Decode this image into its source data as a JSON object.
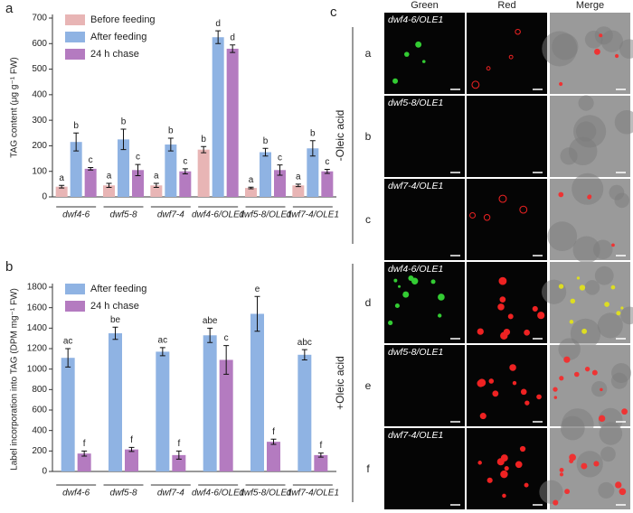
{
  "chart_data": [
    {
      "type": "bar",
      "panel": "a",
      "ylabel": "TAG content (μg g⁻¹ FW)",
      "categories": [
        "dwf4-6",
        "dwf5-8",
        "dwf7-4",
        "dwf4-6/OLE1",
        "dwf5-8/OLE1",
        "dwf7-4/OLE1"
      ],
      "series": [
        {
          "name": "Before feeding",
          "color": "#e8b5b5",
          "values": [
            40,
            45,
            45,
            185,
            35,
            45
          ],
          "errors": [
            5,
            8,
            8,
            12,
            3,
            5
          ],
          "letters": [
            "a",
            "a",
            "a",
            "b",
            "a",
            "a"
          ]
        },
        {
          "name": "After feeding",
          "color": "#8fb3e3",
          "values": [
            215,
            225,
            205,
            625,
            175,
            190
          ],
          "errors": [
            35,
            40,
            25,
            25,
            15,
            30
          ],
          "letters": [
            "b",
            "b",
            "b",
            "d",
            "b",
            "b"
          ]
        },
        {
          "name": "24 h chase",
          "color": "#b47bc0",
          "values": [
            110,
            105,
            100,
            580,
            105,
            100
          ],
          "errors": [
            5,
            22,
            10,
            15,
            20,
            8
          ],
          "letters": [
            "c",
            "c",
            "c",
            "d",
            "c",
            "c"
          ]
        }
      ],
      "ylim": [
        0,
        700
      ],
      "yticks": [
        0,
        100,
        200,
        300,
        400,
        500,
        600,
        700
      ],
      "legend": "upper left"
    },
    {
      "type": "bar",
      "panel": "b",
      "ylabel": "Label incorporation into TAG (DPM mg⁻¹ FW)",
      "categories": [
        "dwf4-6",
        "dwf5-8",
        "dwf7-4",
        "dwf4-6/OLE1",
        "dwf5-8/OLE1",
        "dwf7-4/OLE1"
      ],
      "series": [
        {
          "name": "After feeding",
          "color": "#8fb3e3",
          "values": [
            1110,
            1350,
            1170,
            1330,
            1540,
            1140
          ],
          "errors": [
            90,
            60,
            40,
            70,
            170,
            50
          ],
          "letters": [
            "ac",
            "be",
            "ac",
            "abe",
            "e",
            "abc"
          ]
        },
        {
          "name": "24 h chase",
          "color": "#b47bc0",
          "values": [
            175,
            215,
            160,
            1090,
            290,
            160
          ],
          "errors": [
            25,
            20,
            40,
            140,
            25,
            20
          ],
          "letters": [
            "f",
            "f",
            "f",
            "c",
            "f",
            "f"
          ]
        }
      ],
      "ylim": [
        0,
        1800
      ],
      "yticks": [
        0,
        200,
        400,
        600,
        800,
        1000,
        1200,
        1400,
        1600,
        1800
      ],
      "legend": "upper left"
    }
  ],
  "panel_c": {
    "label": "c",
    "columns": [
      "Green",
      "Red",
      "Merge"
    ],
    "groups": [
      "-Oleic acid",
      "+Oleic acid"
    ],
    "rows": [
      {
        "letter": "a",
        "sample": "dwf4-6/OLE1"
      },
      {
        "letter": "b",
        "sample": "dwf5-8/OLE1"
      },
      {
        "letter": "c",
        "sample": "dwf7-4/OLE1"
      },
      {
        "letter": "d",
        "sample": "dwf4-6/OLE1"
      },
      {
        "letter": "e",
        "sample": "dwf5-8/OLE1"
      },
      {
        "letter": "f",
        "sample": "dwf7-4/OLE1"
      }
    ]
  }
}
